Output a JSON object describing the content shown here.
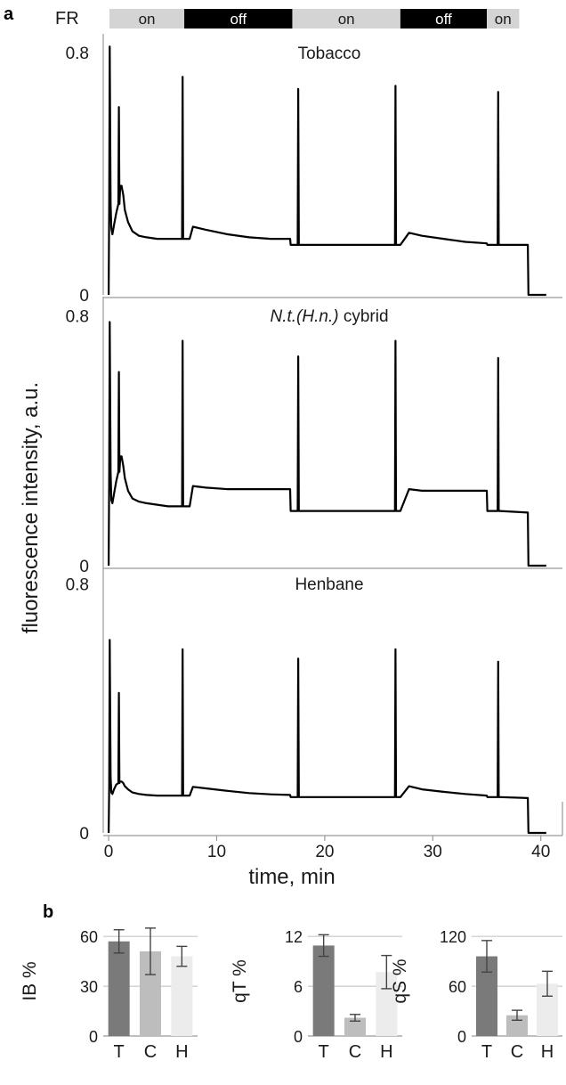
{
  "figure": {
    "panel_a_label": "a",
    "panel_b_label": "b",
    "fr_label": "FR"
  },
  "colors": {
    "on": "#d4d4d4",
    "off": "#000000",
    "trace": "#000000",
    "bar_T": "#7a7a7a",
    "bar_C": "#bdbdbd",
    "bar_H": "#ececec",
    "grid": "#c8c8c8"
  },
  "chart_data": [
    {
      "type": "line",
      "shared_ylabel": "fluorescence intensity, a.u.",
      "xlabel": "time,  min",
      "xlim": [
        -0.5,
        42
      ],
      "xticks": [
        0,
        10,
        20,
        30,
        40
      ],
      "fr_bar": [
        {
          "label": "on",
          "state": "on",
          "start": 0,
          "end": 7
        },
        {
          "label": "off",
          "state": "off",
          "start": 7,
          "end": 17
        },
        {
          "label": "on",
          "state": "on",
          "start": 17,
          "end": 27
        },
        {
          "label": "off",
          "state": "off",
          "start": 27,
          "end": 35
        },
        {
          "label": "on",
          "state": "on",
          "start": 35,
          "end": 38
        }
      ],
      "panels": [
        {
          "title": "Tobacco",
          "ylim": [
            0,
            0.85
          ],
          "yticks": [
            {
              "value": 0,
              "label": "0"
            },
            {
              "value": 0.8,
              "label": "0.8"
            }
          ],
          "x": [
            0,
            0.05,
            0.1,
            0.18,
            0.25,
            0.35,
            0.5,
            0.7,
            0.9,
            0.95,
            1.0,
            1.05,
            1.1,
            1.2,
            1.35,
            1.5,
            1.8,
            2.2,
            2.8,
            3.5,
            4.5,
            5.5,
            6.8,
            6.85,
            6.9,
            6.95,
            7.0,
            7.5,
            7.8,
            9,
            11,
            13,
            15,
            16.8,
            16.85,
            17.0,
            17.5,
            17.55,
            17.6,
            17.65,
            17.7,
            20,
            23,
            26.5,
            26.55,
            26.6,
            26.65,
            26.7,
            27.0,
            27.8,
            29,
            31,
            33,
            35.0,
            35.05,
            36.0,
            36.05,
            36.1,
            36.15,
            36.2,
            38.8,
            38.85,
            40.5
          ],
          "y": [
            0.0,
            0.3,
            0.82,
            0.3,
            0.22,
            0.2,
            0.23,
            0.27,
            0.3,
            0.62,
            0.3,
            0.34,
            0.36,
            0.36,
            0.33,
            0.28,
            0.24,
            0.21,
            0.195,
            0.19,
            0.185,
            0.185,
            0.185,
            0.72,
            0.185,
            0.185,
            0.185,
            0.185,
            0.225,
            0.215,
            0.2,
            0.19,
            0.185,
            0.185,
            0.165,
            0.165,
            0.165,
            0.68,
            0.165,
            0.165,
            0.165,
            0.165,
            0.165,
            0.165,
            0.69,
            0.165,
            0.165,
            0.165,
            0.165,
            0.205,
            0.195,
            0.185,
            0.175,
            0.17,
            0.165,
            0.165,
            0.67,
            0.165,
            0.165,
            0.165,
            0.165,
            0.0,
            0.0
          ]
        },
        {
          "title": "N.t.(H.n.) cybrid",
          "title_italic_parts": [
            "N.t.",
            "(H.n.)"
          ],
          "title_plain_parts": [
            "",
            "",
            " cybrid"
          ],
          "ylim": [
            0,
            0.85
          ],
          "yticks": [
            {
              "value": 0,
              "label": "0"
            },
            {
              "value": 0.8,
              "label": "0.8"
            }
          ],
          "x": [
            0,
            0.05,
            0.1,
            0.18,
            0.25,
            0.35,
            0.5,
            0.7,
            0.9,
            0.95,
            1.0,
            1.05,
            1.1,
            1.2,
            1.35,
            1.5,
            1.8,
            2.2,
            2.8,
            3.5,
            4.5,
            5.5,
            6.8,
            6.85,
            6.9,
            6.95,
            7.0,
            7.5,
            7.8,
            9,
            11,
            13,
            15,
            16.8,
            16.85,
            17.0,
            17.5,
            17.55,
            17.6,
            17.65,
            17.7,
            20,
            23,
            26.5,
            26.55,
            26.6,
            26.65,
            26.7,
            27.0,
            27.8,
            29,
            31,
            33,
            35.0,
            35.05,
            36.0,
            36.05,
            36.1,
            36.15,
            36.2,
            38.8,
            38.85,
            40.5
          ],
          "y": [
            0.0,
            0.3,
            0.78,
            0.3,
            0.21,
            0.2,
            0.23,
            0.27,
            0.3,
            0.62,
            0.3,
            0.33,
            0.35,
            0.35,
            0.32,
            0.28,
            0.24,
            0.215,
            0.205,
            0.2,
            0.195,
            0.19,
            0.19,
            0.72,
            0.19,
            0.19,
            0.19,
            0.19,
            0.255,
            0.25,
            0.245,
            0.245,
            0.245,
            0.245,
            0.175,
            0.175,
            0.175,
            0.67,
            0.175,
            0.175,
            0.175,
            0.175,
            0.175,
            0.175,
            0.72,
            0.175,
            0.175,
            0.175,
            0.175,
            0.245,
            0.24,
            0.24,
            0.24,
            0.24,
            0.175,
            0.175,
            0.665,
            0.175,
            0.175,
            0.175,
            0.17,
            0.0,
            0.0
          ]
        },
        {
          "title": "Henbane",
          "ylim": [
            0,
            0.85
          ],
          "yticks": [
            {
              "value": 0,
              "label": "0"
            },
            {
              "value": 0.8,
              "label": "0.8"
            }
          ],
          "x": [
            0,
            0.05,
            0.1,
            0.18,
            0.25,
            0.35,
            0.5,
            0.7,
            0.9,
            0.95,
            1.0,
            1.05,
            1.1,
            1.2,
            1.35,
            1.5,
            1.8,
            2.2,
            2.8,
            3.5,
            4.5,
            5.5,
            6.8,
            6.85,
            6.9,
            6.95,
            7.0,
            7.5,
            7.8,
            9,
            11,
            13,
            15,
            16.8,
            16.85,
            17.0,
            17.5,
            17.55,
            17.6,
            17.65,
            17.7,
            20,
            23,
            26.5,
            26.55,
            26.6,
            26.65,
            26.7,
            27.0,
            27.8,
            29,
            31,
            33,
            35.0,
            35.05,
            36.0,
            36.05,
            36.1,
            36.15,
            36.2,
            38.8,
            38.85,
            40.5
          ],
          "y": [
            0.0,
            0.15,
            0.62,
            0.18,
            0.13,
            0.125,
            0.14,
            0.155,
            0.16,
            0.45,
            0.16,
            0.165,
            0.165,
            0.165,
            0.16,
            0.15,
            0.14,
            0.13,
            0.125,
            0.122,
            0.12,
            0.12,
            0.12,
            0.59,
            0.12,
            0.12,
            0.12,
            0.12,
            0.148,
            0.143,
            0.135,
            0.128,
            0.124,
            0.122,
            0.115,
            0.115,
            0.115,
            0.56,
            0.115,
            0.115,
            0.115,
            0.115,
            0.115,
            0.115,
            0.59,
            0.115,
            0.115,
            0.115,
            0.115,
            0.15,
            0.14,
            0.132,
            0.125,
            0.12,
            0.115,
            0.115,
            0.55,
            0.115,
            0.115,
            0.115,
            0.112,
            0.0,
            0.0
          ]
        }
      ]
    },
    {
      "type": "bar",
      "ylabel": "IB %",
      "categories": [
        "T",
        "C",
        "H"
      ],
      "values": [
        57,
        51,
        48
      ],
      "errors": [
        7,
        14,
        6
      ],
      "ylim": [
        0,
        66
      ],
      "yticks": [
        {
          "value": 0,
          "label": "0"
        },
        {
          "value": 30,
          "label": "30"
        },
        {
          "value": 60,
          "label": "60"
        }
      ]
    },
    {
      "type": "bar",
      "ylabel": "qT %",
      "categories": [
        "T",
        "C",
        "H"
      ],
      "values": [
        10.9,
        2.2,
        7.7
      ],
      "errors": [
        1.3,
        0.4,
        2.0
      ],
      "ylim": [
        0,
        13.2
      ],
      "yticks": [
        {
          "value": 0,
          "label": "0"
        },
        {
          "value": 6,
          "label": "6"
        },
        {
          "value": 12,
          "label": "12"
        }
      ]
    },
    {
      "type": "bar",
      "ylabel": "qS %",
      "categories": [
        "T",
        "C",
        "H"
      ],
      "values": [
        96,
        25,
        63
      ],
      "errors": [
        19,
        6,
        15
      ],
      "ylim": [
        0,
        132
      ],
      "yticks": [
        {
          "value": 0,
          "label": "0"
        },
        {
          "value": 60,
          "label": "60"
        },
        {
          "value": 120,
          "label": "120"
        }
      ]
    }
  ]
}
